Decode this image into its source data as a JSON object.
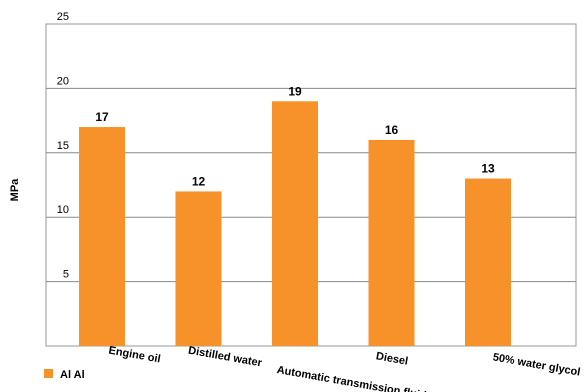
{
  "chart_data": {
    "type": "bar",
    "categories": [
      "Engine oil",
      "Distilled water",
      "Automatic transmission fluid",
      "Diesel",
      "50% water glycol"
    ],
    "series": [
      {
        "name": "Al Al",
        "values": [
          17,
          12,
          19,
          16,
          13
        ],
        "color": "#f7922a"
      }
    ],
    "data_labels": [
      "17",
      "12",
      "19",
      "16",
      "13"
    ],
    "ylabel": "MPa",
    "xlabel": "",
    "ylim": [
      0,
      25
    ],
    "yticks": [
      5,
      10,
      15,
      20,
      25
    ],
    "ytick_labels": [
      "5",
      "10",
      "15",
      "20",
      "25"
    ],
    "grid": true,
    "legend_position": "bottom-left"
  }
}
